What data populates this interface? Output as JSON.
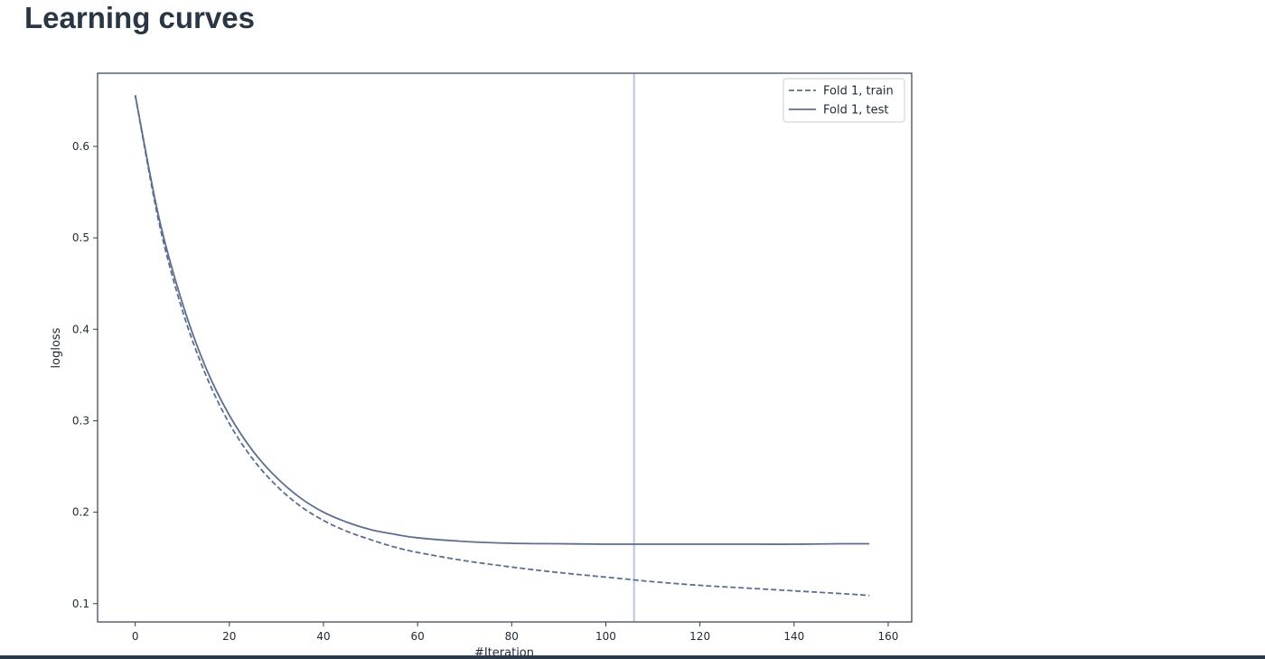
{
  "page": {
    "title": "Learning curves"
  },
  "chart_data": {
    "type": "line",
    "title": "",
    "xlabel": "#Iteration",
    "ylabel": "logloss",
    "xlim": [
      -8,
      165
    ],
    "ylim": [
      0.08,
      0.68
    ],
    "x_ticks": [
      0,
      20,
      40,
      60,
      80,
      100,
      120,
      140,
      160
    ],
    "y_ticks": [
      0.1,
      0.2,
      0.3,
      0.4,
      0.5,
      0.6
    ],
    "grid": false,
    "legend_position": "top-right",
    "vertical_marker_x": 106,
    "series": [
      {
        "name": "Fold 1, train",
        "style": "dashed",
        "color": "#5b6f8f",
        "x": [
          0,
          5,
          10,
          15,
          20,
          25,
          30,
          35,
          40,
          45,
          50,
          55,
          60,
          70,
          80,
          90,
          100,
          106,
          110,
          120,
          130,
          140,
          150,
          156
        ],
        "values": [
          0.656,
          0.518,
          0.421,
          0.35,
          0.297,
          0.258,
          0.229,
          0.207,
          0.191,
          0.179,
          0.17,
          0.162,
          0.156,
          0.147,
          0.14,
          0.134,
          0.129,
          0.126,
          0.124,
          0.12,
          0.117,
          0.114,
          0.111,
          0.109
        ]
      },
      {
        "name": "Fold 1, test",
        "style": "solid",
        "color": "#5b6f8f",
        "x": [
          0,
          5,
          10,
          15,
          20,
          25,
          30,
          35,
          40,
          45,
          50,
          55,
          60,
          70,
          80,
          90,
          100,
          106,
          110,
          120,
          130,
          140,
          150,
          156
        ],
        "values": [
          0.656,
          0.523,
          0.429,
          0.358,
          0.306,
          0.267,
          0.238,
          0.216,
          0.2,
          0.189,
          0.181,
          0.176,
          0.172,
          0.168,
          0.166,
          0.1655,
          0.165,
          0.165,
          0.165,
          0.165,
          0.165,
          0.165,
          0.1655,
          0.1655
        ]
      }
    ]
  }
}
